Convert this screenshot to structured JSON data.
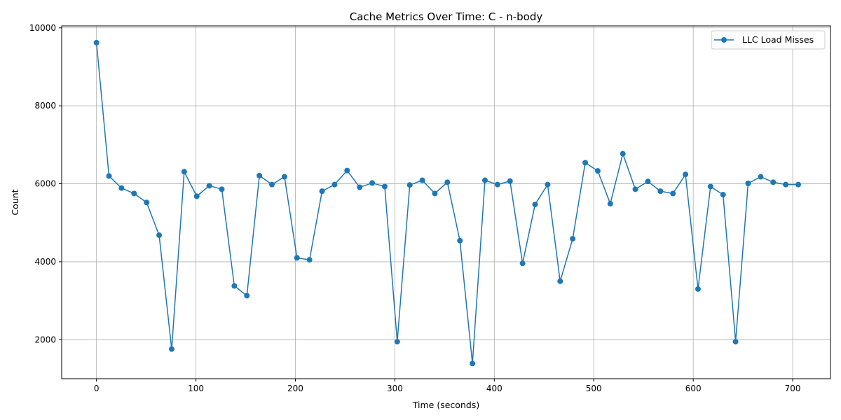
{
  "chart_data": {
    "type": "line",
    "title": "Cache Metrics Over Time: C - n-body",
    "xlabel": "Time (seconds)",
    "ylabel": "Count",
    "xlim": [
      -35,
      738
    ],
    "ylim": [
      1000,
      10050
    ],
    "xticks": [
      0,
      100,
      200,
      300,
      400,
      500,
      600,
      700
    ],
    "yticks": [
      2000,
      4000,
      6000,
      8000,
      10000
    ],
    "grid": true,
    "legend_position": "top-right",
    "series": [
      {
        "name": "LLC Load Misses",
        "color": "#1f77b4",
        "marker": "circle",
        "x": [
          0,
          12.6,
          25.2,
          37.8,
          50.4,
          63,
          75.6,
          88.2,
          100.8,
          113.4,
          126,
          138.6,
          151.2,
          163.8,
          176.4,
          189,
          201.6,
          214.2,
          226.8,
          239.4,
          252,
          264.6,
          277.2,
          289.8,
          302.4,
          315,
          327.6,
          340.2,
          352.8,
          365.4,
          378,
          390.6,
          403.2,
          415.8,
          428.4,
          441,
          453.6,
          466.2,
          478.8,
          491.4,
          504,
          516.6,
          529.2,
          541.8,
          554.4,
          567,
          579.6,
          592.2,
          604.8,
          617.4,
          630,
          642.6,
          655.2,
          667.8,
          680.4,
          693,
          705.6
        ],
        "y": [
          9620,
          6200,
          5890,
          5750,
          5520,
          4680,
          1760,
          6310,
          5680,
          5950,
          5860,
          3380,
          3130,
          6210,
          5980,
          6180,
          4100,
          4050,
          5810,
          5980,
          6340,
          5910,
          6020,
          5930,
          1950,
          5970,
          6090,
          5750,
          6040,
          4540,
          1390,
          6090,
          5980,
          6070,
          3960,
          5470,
          5980,
          3500,
          4590,
          6540,
          6330,
          5490,
          6770,
          5860,
          6060,
          5810,
          5750,
          6240,
          3300,
          5930,
          5720,
          1950,
          6010,
          6180,
          6040,
          5980,
          5980
        ]
      }
    ]
  }
}
